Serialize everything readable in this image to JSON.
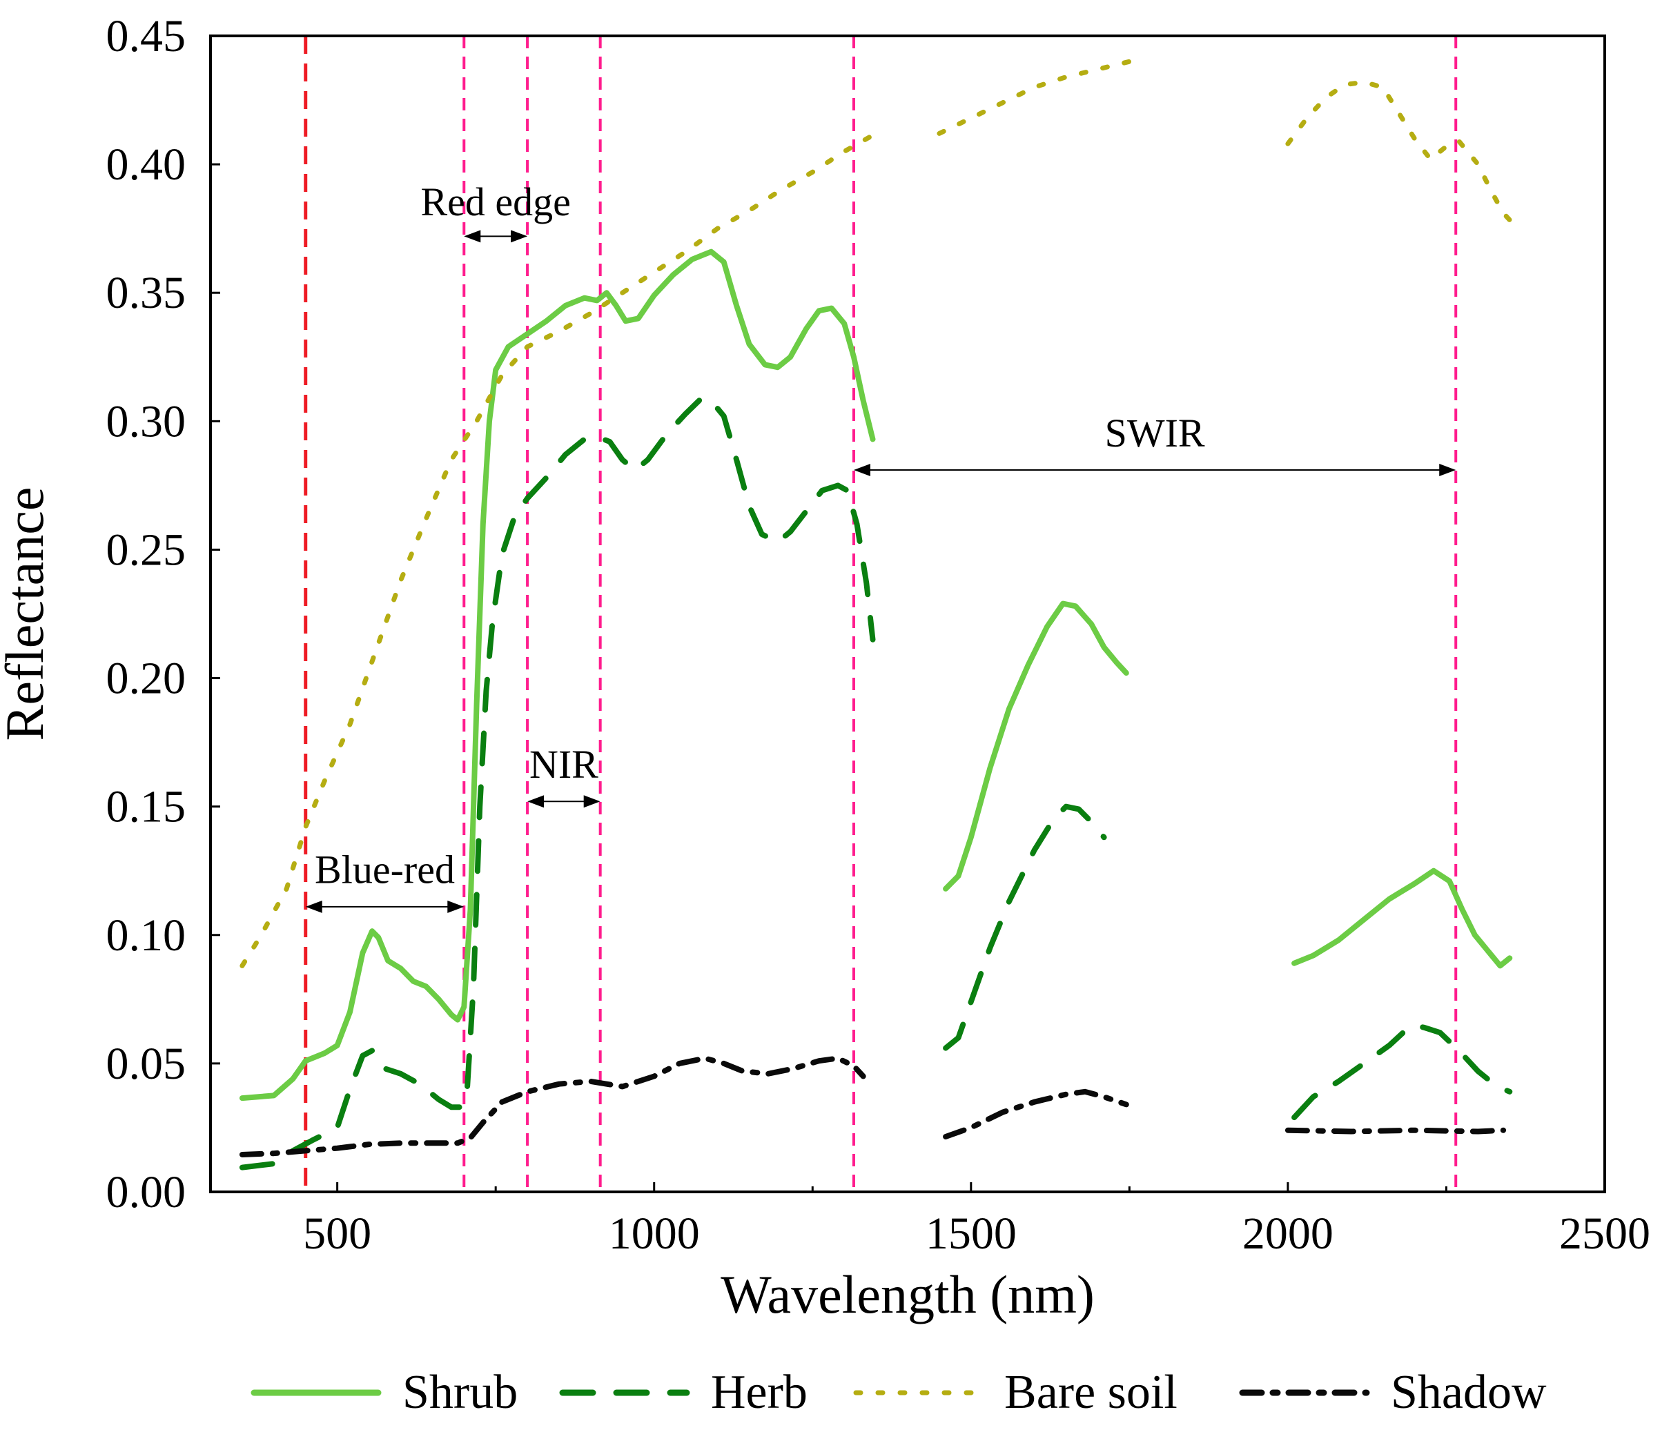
{
  "chart_data": {
    "type": "line",
    "title": "",
    "xlabel": "Wavelength (nm)",
    "ylabel": "Reflectance",
    "xlim": [
      300,
      2500
    ],
    "ylim": [
      0,
      0.45
    ],
    "xticks": [
      500,
      1000,
      1500,
      2000,
      2500
    ],
    "xtick_labels": [
      "500",
      "1000",
      "1500",
      "2000",
      "2500"
    ],
    "yticks": [
      0,
      0.05,
      0.1,
      0.15,
      0.2,
      0.25,
      0.3,
      0.35,
      0.4,
      0.45
    ],
    "ytick_labels": [
      "0.00",
      "0.05",
      "0.10",
      "0.15",
      "0.20",
      "0.25",
      "0.30",
      "0.35",
      "0.40",
      "0.45"
    ],
    "grid": false,
    "legend_position": "bottom",
    "vlines": [
      {
        "x": 450,
        "color": "#ee1c25"
      },
      {
        "x": 700,
        "color": "#ff1c8d"
      },
      {
        "x": 800,
        "color": "#ff1c8d"
      },
      {
        "x": 915,
        "color": "#ff1c8d"
      },
      {
        "x": 1315,
        "color": "#ff1c8d"
      },
      {
        "x": 2265,
        "color": "#ff1c8d"
      }
    ],
    "annotations": [
      {
        "label": "Blue-red",
        "x_start": 450,
        "x_end": 700,
        "y_arrow": 0.111,
        "y_text": 0.125
      },
      {
        "label": "Red edge",
        "x_start": 700,
        "x_end": 800,
        "y_arrow": 0.372,
        "y_text": 0.385
      },
      {
        "label": "NIR",
        "x_start": 800,
        "x_end": 915,
        "y_arrow": 0.152,
        "y_text": 0.166
      },
      {
        "label": "SWIR",
        "x_start": 1315,
        "x_end": 2265,
        "y_arrow": 0.281,
        "y_text": 0.295
      }
    ],
    "series": [
      {
        "name": "Shrub",
        "color": "#6ccc45",
        "style": "solid",
        "segments": [
          [
            [
              350,
              0.0365
            ],
            [
              400,
              0.0375
            ],
            [
              430,
              0.044
            ],
            [
              450,
              0.051
            ],
            [
              480,
              0.054
            ],
            [
              500,
              0.057
            ],
            [
              520,
              0.07
            ],
            [
              540,
              0.093
            ],
            [
              555,
              0.1015
            ],
            [
              565,
              0.099
            ],
            [
              580,
              0.09
            ],
            [
              600,
              0.087
            ],
            [
              620,
              0.082
            ],
            [
              640,
              0.08
            ],
            [
              660,
              0.075
            ],
            [
              680,
              0.069
            ],
            [
              690,
              0.067
            ],
            [
              700,
              0.072
            ],
            [
              710,
              0.11
            ],
            [
              720,
              0.19
            ],
            [
              730,
              0.26
            ],
            [
              740,
              0.3
            ],
            [
              750,
              0.32
            ],
            [
              770,
              0.329
            ],
            [
              800,
              0.334
            ],
            [
              830,
              0.339
            ],
            [
              860,
              0.345
            ],
            [
              890,
              0.348
            ],
            [
              910,
              0.347
            ],
            [
              925,
              0.35
            ],
            [
              940,
              0.345
            ],
            [
              955,
              0.339
            ],
            [
              975,
              0.34
            ],
            [
              1000,
              0.349
            ],
            [
              1030,
              0.357
            ],
            [
              1060,
              0.363
            ],
            [
              1090,
              0.366
            ],
            [
              1110,
              0.362
            ],
            [
              1130,
              0.345
            ],
            [
              1150,
              0.33
            ],
            [
              1175,
              0.322
            ],
            [
              1195,
              0.321
            ],
            [
              1215,
              0.325
            ],
            [
              1240,
              0.336
            ],
            [
              1260,
              0.343
            ],
            [
              1280,
              0.344
            ],
            [
              1300,
              0.338
            ],
            [
              1315,
              0.325
            ],
            [
              1330,
              0.308
            ],
            [
              1345,
              0.293
            ]
          ],
          [
            [
              1460,
              0.118
            ],
            [
              1480,
              0.123
            ],
            [
              1500,
              0.138
            ],
            [
              1530,
              0.165
            ],
            [
              1560,
              0.188
            ],
            [
              1590,
              0.205
            ],
            [
              1620,
              0.22
            ],
            [
              1645,
              0.229
            ],
            [
              1665,
              0.228
            ],
            [
              1690,
              0.221
            ],
            [
              1710,
              0.212
            ],
            [
              1730,
              0.206
            ],
            [
              1745,
              0.202
            ]
          ],
          [
            [
              2010,
              0.089
            ],
            [
              2040,
              0.092
            ],
            [
              2080,
              0.098
            ],
            [
              2120,
              0.106
            ],
            [
              2160,
              0.114
            ],
            [
              2200,
              0.12
            ],
            [
              2230,
              0.125
            ],
            [
              2255,
              0.121
            ],
            [
              2275,
              0.11
            ],
            [
              2295,
              0.1
            ],
            [
              2315,
              0.094
            ],
            [
              2335,
              0.088
            ],
            [
              2350,
              0.091
            ]
          ]
        ]
      },
      {
        "name": "Herb",
        "color": "#0a7f10",
        "style": "dashed",
        "segments": [
          [
            [
              350,
              0.0095
            ],
            [
              400,
              0.011
            ],
            [
              430,
              0.016
            ],
            [
              460,
              0.02
            ],
            [
              500,
              0.025
            ],
            [
              520,
              0.04
            ],
            [
              540,
              0.053
            ],
            [
              555,
              0.055
            ],
            [
              575,
              0.048
            ],
            [
              600,
              0.046
            ],
            [
              630,
              0.042
            ],
            [
              660,
              0.036
            ],
            [
              680,
              0.033
            ],
            [
              695,
              0.033
            ],
            [
              705,
              0.04
            ],
            [
              715,
              0.08
            ],
            [
              725,
              0.15
            ],
            [
              735,
              0.195
            ],
            [
              745,
              0.222
            ],
            [
              760,
              0.248
            ],
            [
              780,
              0.263
            ],
            [
              800,
              0.27
            ],
            [
              830,
              0.278
            ],
            [
              860,
              0.287
            ],
            [
              890,
              0.293
            ],
            [
              910,
              0.294
            ],
            [
              930,
              0.292
            ],
            [
              950,
              0.285
            ],
            [
              970,
              0.281
            ],
            [
              990,
              0.285
            ],
            [
              1020,
              0.295
            ],
            [
              1050,
              0.303
            ],
            [
              1075,
              0.309
            ],
            [
              1090,
              0.308
            ],
            [
              1110,
              0.302
            ],
            [
              1130,
              0.285
            ],
            [
              1150,
              0.267
            ],
            [
              1170,
              0.256
            ],
            [
              1195,
              0.253
            ],
            [
              1215,
              0.257
            ],
            [
              1240,
              0.265
            ],
            [
              1265,
              0.273
            ],
            [
              1290,
              0.275
            ],
            [
              1305,
              0.273
            ],
            [
              1320,
              0.26
            ],
            [
              1335,
              0.237
            ],
            [
              1345,
              0.215
            ]
          ],
          [
            [
              1460,
              0.056
            ],
            [
              1480,
              0.06
            ],
            [
              1500,
              0.074
            ],
            [
              1530,
              0.095
            ],
            [
              1560,
              0.113
            ],
            [
              1600,
              0.133
            ],
            [
              1630,
              0.145
            ],
            [
              1650,
              0.15
            ],
            [
              1670,
              0.149
            ],
            [
              1690,
              0.144
            ],
            [
              1710,
              0.138
            ]
          ],
          [
            [
              2010,
              0.029
            ],
            [
              2040,
              0.037
            ],
            [
              2080,
              0.043
            ],
            [
              2120,
              0.05
            ],
            [
              2160,
              0.057
            ],
            [
              2195,
              0.065
            ],
            [
              2215,
              0.064
            ],
            [
              2240,
              0.062
            ],
            [
              2270,
              0.055
            ],
            [
              2300,
              0.047
            ],
            [
              2330,
              0.041
            ],
            [
              2350,
              0.039
            ]
          ]
        ]
      },
      {
        "name": "Bare soil",
        "color": "#b5ad12",
        "style": "dotted",
        "segments": [
          [
            [
              350,
              0.088
            ],
            [
              380,
              0.1
            ],
            [
              420,
              0.118
            ],
            [
              450,
              0.142
            ],
            [
              480,
              0.16
            ],
            [
              520,
              0.182
            ],
            [
              560,
              0.21
            ],
            [
              600,
              0.238
            ],
            [
              640,
              0.262
            ],
            [
              680,
              0.285
            ],
            [
              720,
              0.3
            ],
            [
              760,
              0.318
            ],
            [
              800,
              0.329
            ],
            [
              850,
              0.335
            ],
            [
              900,
              0.342
            ],
            [
              950,
              0.35
            ],
            [
              1000,
              0.358
            ],
            [
              1050,
              0.366
            ],
            [
              1100,
              0.375
            ],
            [
              1150,
              0.382
            ],
            [
              1200,
              0.39
            ],
            [
              1250,
              0.397
            ],
            [
              1300,
              0.405
            ],
            [
              1350,
              0.412
            ]
          ],
          [
            [
              1450,
              0.412
            ],
            [
              1500,
              0.418
            ],
            [
              1550,
              0.424
            ],
            [
              1600,
              0.43
            ],
            [
              1650,
              0.434
            ],
            [
              1700,
              0.437
            ],
            [
              1750,
              0.44
            ]
          ],
          [
            [
              2000,
              0.408
            ],
            [
              2030,
              0.418
            ],
            [
              2060,
              0.426
            ],
            [
              2090,
              0.431
            ],
            [
              2120,
              0.432
            ],
            [
              2150,
              0.43
            ],
            [
              2175,
              0.42
            ],
            [
              2200,
              0.41
            ],
            [
              2225,
              0.402
            ],
            [
              2250,
              0.407
            ],
            [
              2270,
              0.409
            ],
            [
              2300,
              0.4
            ],
            [
              2320,
              0.39
            ],
            [
              2340,
              0.381
            ],
            [
              2355,
              0.377
            ]
          ]
        ]
      },
      {
        "name": "Shadow",
        "color": "#0a0a0a",
        "style": "dashdot",
        "segments": [
          [
            [
              350,
              0.0145
            ],
            [
              400,
              0.015
            ],
            [
              450,
              0.016
            ],
            [
              500,
              0.017
            ],
            [
              550,
              0.0185
            ],
            [
              600,
              0.019
            ],
            [
              650,
              0.019
            ],
            [
              690,
              0.019
            ],
            [
              710,
              0.021
            ],
            [
              730,
              0.027
            ],
            [
              760,
              0.035
            ],
            [
              800,
              0.039
            ],
            [
              850,
              0.042
            ],
            [
              900,
              0.043
            ],
            [
              950,
              0.041
            ],
            [
              1000,
              0.045
            ],
            [
              1040,
              0.05
            ],
            [
              1080,
              0.052
            ],
            [
              1110,
              0.05
            ],
            [
              1140,
              0.047
            ],
            [
              1180,
              0.046
            ],
            [
              1220,
              0.048
            ],
            [
              1260,
              0.051
            ],
            [
              1290,
              0.052
            ],
            [
              1315,
              0.049
            ],
            [
              1330,
              0.045
            ]
          ],
          [
            [
              1460,
              0.0215
            ],
            [
              1500,
              0.025
            ],
            [
              1550,
              0.031
            ],
            [
              1600,
              0.035
            ],
            [
              1650,
              0.038
            ],
            [
              1680,
              0.039
            ],
            [
              1710,
              0.037
            ],
            [
              1745,
              0.034
            ]
          ],
          [
            [
              2000,
              0.024
            ],
            [
              2100,
              0.0235
            ],
            [
              2200,
              0.024
            ],
            [
              2300,
              0.0235
            ],
            [
              2340,
              0.024
            ]
          ]
        ]
      }
    ]
  }
}
